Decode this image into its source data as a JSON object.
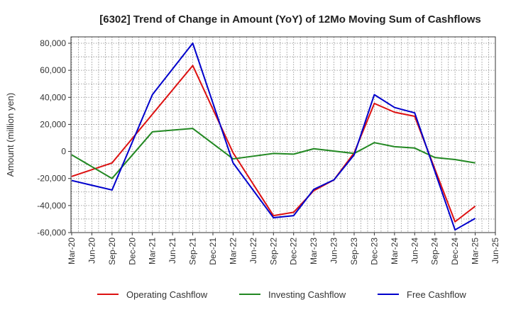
{
  "chart_data": {
    "type": "line",
    "title": "[6302]  Trend of Change in Amount (YoY) of 12Mo Moving Sum of Cashflows",
    "xlabel": "",
    "ylabel": "Amount (million yen)",
    "ylim": [
      -60000,
      80000
    ],
    "yticks": [
      80000,
      60000,
      40000,
      20000,
      0,
      -20000,
      -40000,
      -60000
    ],
    "ytick_labels": [
      "80,000",
      "60,000",
      "40,000",
      "20,000",
      "0",
      "-20,000",
      "-40,000",
      "-60,000"
    ],
    "grid": true,
    "legend_position": "bottom",
    "categories": [
      "Mar-20",
      "Jun-20",
      "Sep-20",
      "Dec-20",
      "Mar-21",
      "Jun-21",
      "Sep-21",
      "Dec-21",
      "Mar-22",
      "Jun-22",
      "Sep-22",
      "Dec-22",
      "Mar-23",
      "Jun-23",
      "Sep-23",
      "Dec-23",
      "Mar-24",
      "Jun-24",
      "Sep-24",
      "Dec-24",
      "Mar-25",
      "Jun-25"
    ],
    "series": [
      {
        "name": "Operating Cashflow",
        "color": "#dd1111",
        "values": [
          -18500,
          null,
          -8500,
          null,
          null,
          null,
          63500,
          null,
          -1000,
          null,
          -47500,
          -45000,
          -29000,
          -21000,
          -1000,
          35500,
          29000,
          26000,
          null,
          -52000,
          -40500,
          null
        ]
      },
      {
        "name": "Investing Cashflow",
        "color": "#228822",
        "values": [
          -2500,
          null,
          -20000,
          null,
          14500,
          null,
          17000,
          null,
          -5500,
          null,
          -1500,
          -2000,
          2000,
          null,
          -1500,
          6500,
          3500,
          2500,
          -4500,
          -6000,
          -8500,
          null
        ]
      },
      {
        "name": "Free Cashflow",
        "color": "#0000cc",
        "values": [
          -21500,
          null,
          -28500,
          null,
          42000,
          null,
          80000,
          null,
          -8500,
          null,
          -49000,
          -47500,
          -28000,
          -21000,
          -2500,
          42000,
          32500,
          28500,
          null,
          -58000,
          -49500,
          null
        ]
      }
    ]
  }
}
